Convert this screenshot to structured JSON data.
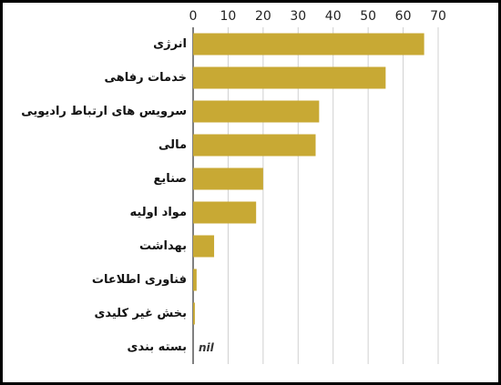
{
  "chart_data": {
    "type": "bar",
    "orientation": "horizontal",
    "categories": [
      "انرژی",
      "خدمات رفاهی",
      "سرویس های ارتباط رادیویی",
      "مالی",
      "صنایع",
      "مواد اولیه",
      "بهداشت",
      "فناوری اطلاعات",
      "بخش غیر کلیدی",
      "بسته بندی"
    ],
    "values": [
      66,
      55,
      36,
      35,
      20,
      18,
      6,
      1,
      0.5,
      0
    ],
    "value_labels": [
      null,
      null,
      null,
      null,
      null,
      null,
      null,
      null,
      null,
      "nil"
    ],
    "color": "#c8a934",
    "xlim": [
      0,
      70
    ],
    "xticks": [
      0,
      10,
      20,
      30,
      40,
      50,
      60,
      70
    ],
    "grid": true
  }
}
